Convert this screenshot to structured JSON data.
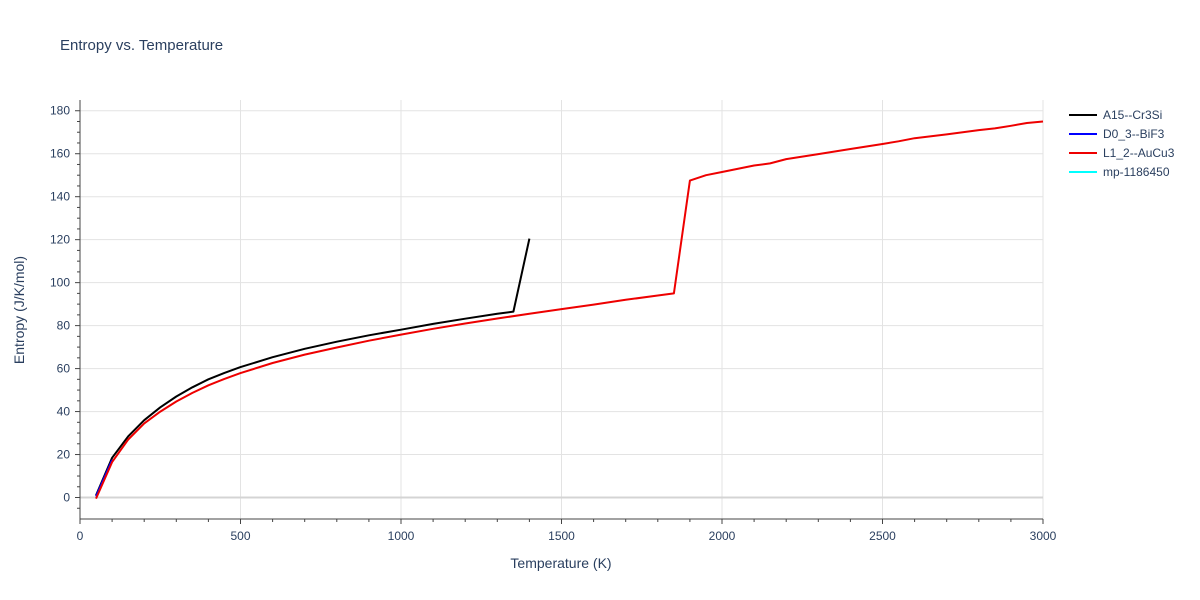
{
  "chart_data": {
    "type": "line",
    "title": "Entropy vs. Temperature",
    "xlabel": "Temperature (K)",
    "ylabel": "Entropy (J/K/mol)",
    "xlim": [
      0,
      3000
    ],
    "ylim": [
      -10,
      185
    ],
    "x_ticks": [
      0,
      500,
      1000,
      1500,
      2000,
      2500,
      3000
    ],
    "y_ticks": [
      0,
      20,
      40,
      60,
      80,
      100,
      120,
      140,
      160,
      180
    ],
    "grid": true,
    "legend_position": "top-right",
    "series": [
      {
        "name": "A15--Cr3Si",
        "color": "#000000",
        "x": [
          50,
          100,
          150,
          200,
          250,
          300,
          350,
          400,
          450,
          500,
          600,
          700,
          800,
          900,
          1000,
          1100,
          1200,
          1300,
          1350,
          1400
        ],
        "y": [
          1,
          18.5,
          28.5,
          36,
          42,
          47,
          51.3,
          55,
          58,
          60.7,
          65.3,
          69.2,
          72.5,
          75.5,
          78.1,
          80.8,
          83.2,
          85.5,
          86.5,
          120.5
        ]
      },
      {
        "name": "D0_3--BiF3",
        "color": "#0000ff",
        "x": [
          50,
          100
        ],
        "y": [
          0.5,
          17.5
        ]
      },
      {
        "name": "L1_2--AuCu3",
        "color": "#ee0000",
        "x": [
          50,
          100,
          150,
          200,
          250,
          300,
          350,
          400,
          450,
          500,
          600,
          700,
          800,
          900,
          1000,
          1100,
          1200,
          1300,
          1400,
          1500,
          1600,
          1700,
          1800,
          1850,
          1900,
          1950,
          2000,
          2100,
          2150,
          2200,
          2300,
          2400,
          2500,
          2550,
          2600,
          2700,
          2800,
          2850,
          2900,
          2950,
          3000
        ],
        "y": [
          -0.5,
          16.5,
          27,
          34.5,
          40,
          44.7,
          48.7,
          52.2,
          55.2,
          57.9,
          62.6,
          66.5,
          69.8,
          73,
          75.8,
          78.5,
          81,
          83.3,
          85.5,
          87.7,
          89.8,
          92,
          94,
          95,
          147.5,
          150,
          151.5,
          154.5,
          155.5,
          157.5,
          159.8,
          162.2,
          164.5,
          165.8,
          167.2,
          169,
          171,
          171.8,
          173,
          174.3,
          175
        ]
      },
      {
        "name": "mp-1186450",
        "color": "#00ffff",
        "x": [],
        "y": []
      }
    ]
  }
}
